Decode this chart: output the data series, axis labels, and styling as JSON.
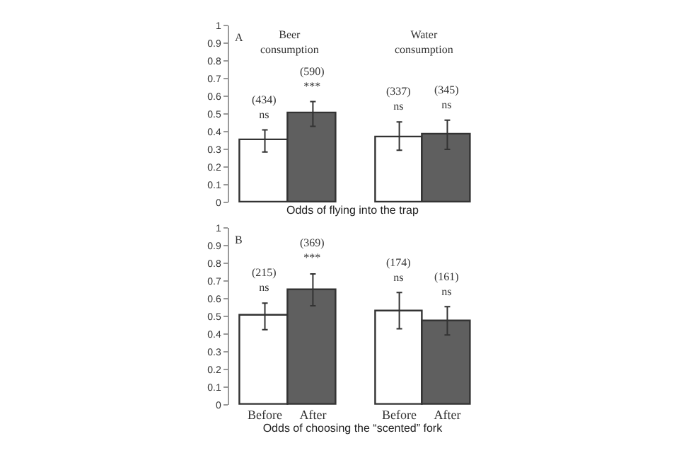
{
  "chart_data": [
    {
      "type": "bar",
      "categories": [
        null,
        null,
        null,
        null
      ],
      "xlabel": "Odds of flying into the trap",
      "values": [
        0.35,
        0.5,
        0.37,
        0.38
      ],
      "colors": [
        "#ffffff",
        "#5f5f5f",
        "#ffffff",
        "#5f5f5f"
      ],
      "errors": [
        [
          0.285,
          0.41
        ],
        [
          0.43,
          0.57
        ],
        [
          0.295,
          0.455
        ],
        [
          0.3,
          0.465
        ]
      ],
      "annotations": [
        "A",
        "Beer\nconsumption",
        "Water\nconsumption",
        {
          "text": "(434)\nns",
          "y": 0.41
        },
        {
          "text": "(590)\n***",
          "y": 0.57
        },
        {
          "text": "(337)\nns",
          "y": 0.455
        },
        {
          "text": "(345)\nns",
          "y": 0.465
        }
      ],
      "ylim": [
        0,
        1
      ],
      "yticks": [
        0,
        0.1,
        0.2,
        0.3,
        0.4,
        0.5,
        0.6,
        0.7,
        0.8,
        0.9,
        1
      ]
    },
    {
      "type": "bar",
      "categories": [
        "Before",
        "After",
        "Before",
        "After"
      ],
      "xlabel": "Odds of choosing the “scented” fork",
      "values": [
        0.5,
        0.65,
        0.53,
        0.47
      ],
      "colors": [
        "#ffffff",
        "#5f5f5f",
        "#ffffff",
        "#5f5f5f"
      ],
      "errors": [
        [
          0.425,
          0.575
        ],
        [
          0.56,
          0.74
        ],
        [
          0.43,
          0.635
        ],
        [
          0.395,
          0.555
        ]
      ],
      "annotations": [
        "B",
        {
          "text": "(215)\nns",
          "y": 0.575
        },
        {
          "text": "(369)\n***",
          "y": 0.74
        },
        {
          "text": "(174)\nns",
          "y": 0.635
        },
        {
          "text": "(161)\nns",
          "y": 0.555
        }
      ],
      "ylim": [
        0,
        1
      ],
      "yticks": [
        0,
        0.1,
        0.2,
        0.3,
        0.4,
        0.5,
        0.6,
        0.7,
        0.8,
        0.9,
        1
      ]
    }
  ]
}
